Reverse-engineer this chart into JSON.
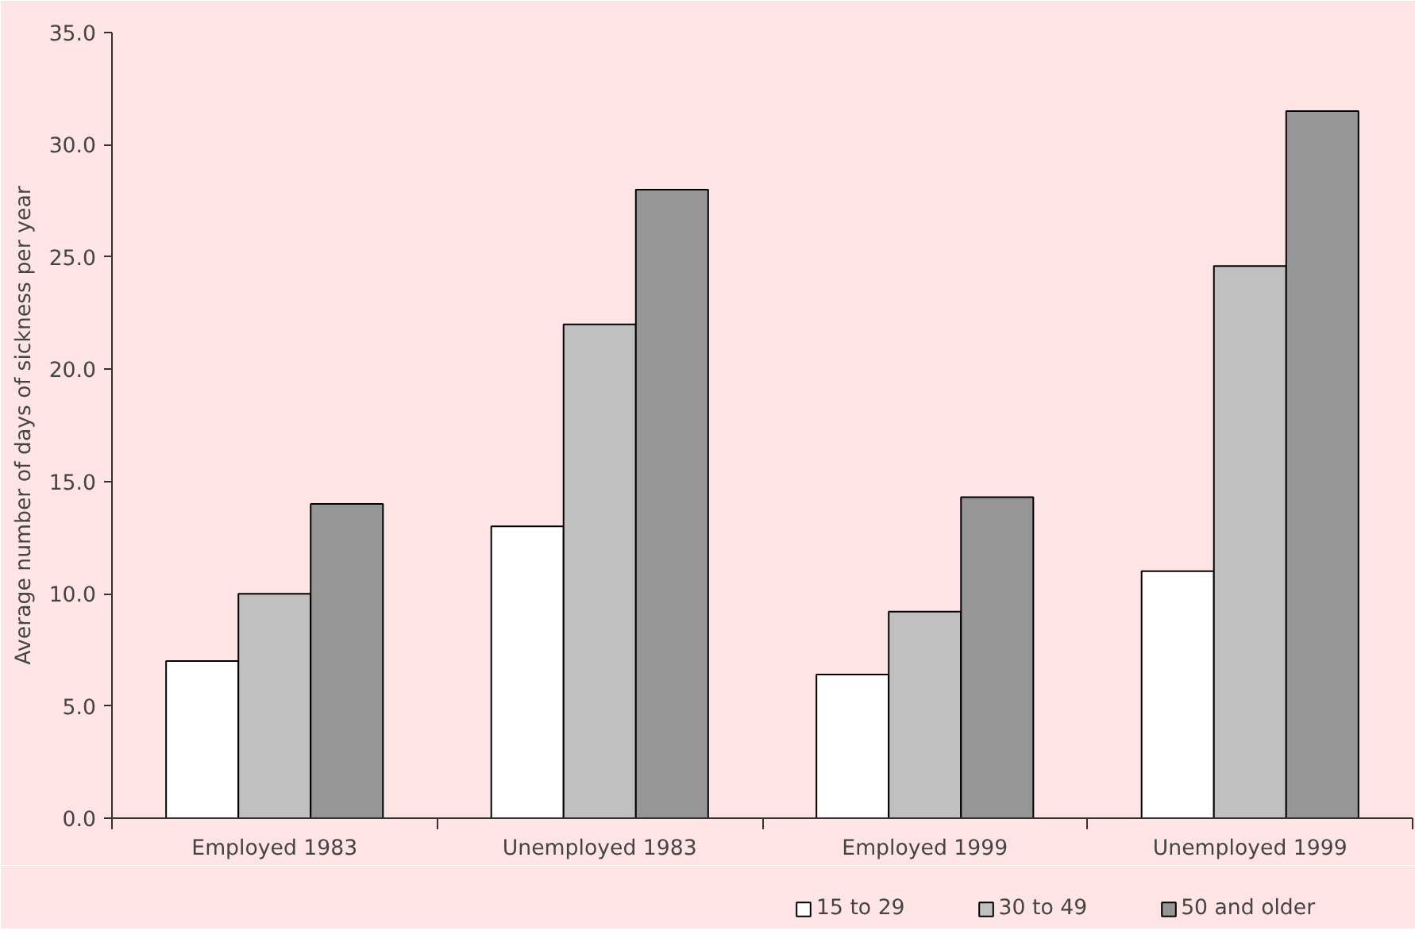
{
  "chart_data": {
    "type": "bar",
    "ylabel": "Average number of days of sickness per year",
    "categories": [
      "Employed 1983",
      "Unemployed 1983",
      "Employed 1999",
      "Unemployed 1999"
    ],
    "series": [
      {
        "name": "15 to 29",
        "color": "#ffffff",
        "values": [
          7.0,
          13.0,
          6.4,
          11.0
        ]
      },
      {
        "name": "30 to 49",
        "color": "#c0c0c0",
        "values": [
          10.0,
          22.0,
          9.2,
          24.6
        ]
      },
      {
        "name": "50 and older",
        "color": "#969696",
        "values": [
          14.0,
          28.0,
          14.3,
          31.5
        ]
      }
    ],
    "ylim": [
      0,
      35
    ],
    "yticks": [
      {
        "value": 0,
        "label": "0.0"
      },
      {
        "value": 5,
        "label": "5.0"
      },
      {
        "value": 10,
        "label": "10.0"
      },
      {
        "value": 15,
        "label": "15.0"
      },
      {
        "value": 20,
        "label": "20.0"
      },
      {
        "value": 25,
        "label": "25.0"
      },
      {
        "value": 30,
        "label": "30.0"
      },
      {
        "value": 35,
        "label": "35.0"
      }
    ],
    "grid": false,
    "legend": "bottom"
  }
}
